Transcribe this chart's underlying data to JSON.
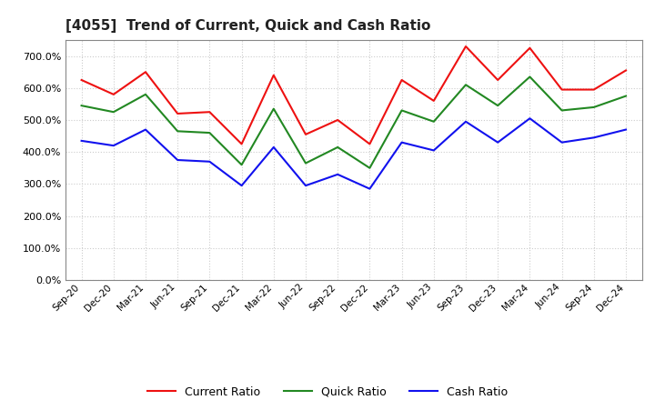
{
  "title": "[4055]  Trend of Current, Quick and Cash Ratio",
  "x_labels": [
    "Sep-20",
    "Dec-20",
    "Mar-21",
    "Jun-21",
    "Sep-21",
    "Dec-21",
    "Mar-22",
    "Jun-22",
    "Sep-22",
    "Dec-22",
    "Mar-23",
    "Jun-23",
    "Sep-23",
    "Dec-23",
    "Mar-24",
    "Jun-24",
    "Sep-24",
    "Dec-24"
  ],
  "current_ratio": [
    625,
    580,
    650,
    520,
    525,
    425,
    640,
    455,
    500,
    425,
    625,
    560,
    730,
    625,
    725,
    595,
    595,
    655
  ],
  "quick_ratio": [
    545,
    525,
    580,
    465,
    460,
    360,
    535,
    365,
    415,
    350,
    530,
    495,
    610,
    545,
    635,
    530,
    540,
    575
  ],
  "cash_ratio": [
    435,
    420,
    470,
    375,
    370,
    295,
    415,
    295,
    330,
    285,
    430,
    405,
    495,
    430,
    505,
    430,
    445,
    470
  ],
  "ylim": [
    0,
    750
  ],
  "yticks": [
    0,
    100,
    200,
    300,
    400,
    500,
    600,
    700
  ],
  "current_color": "#ee1111",
  "quick_color": "#228822",
  "cash_color": "#1111ee",
  "line_width": 1.5,
  "background_color": "#ffffff",
  "grid_color": "#cccccc",
  "legend_labels": [
    "Current Ratio",
    "Quick Ratio",
    "Cash Ratio"
  ]
}
